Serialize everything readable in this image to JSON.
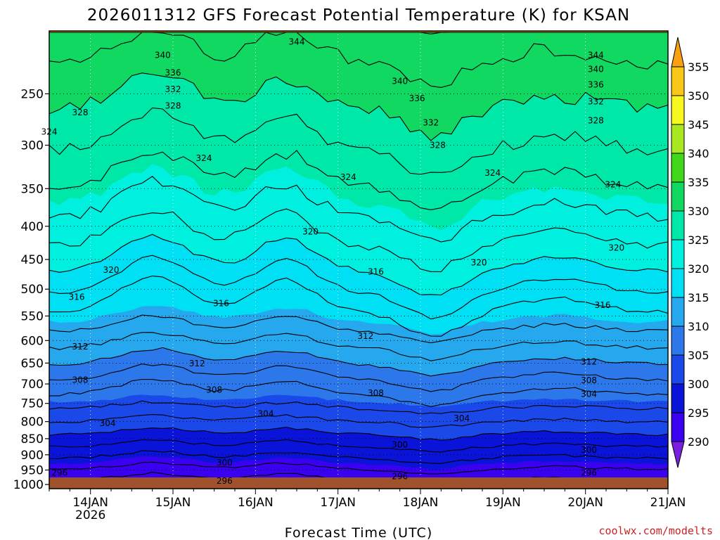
{
  "chart_data": {
    "type": "contour",
    "title": "2026011312 GFS Forecast Potential Temperature (K) for KSAN",
    "xlabel": "Forecast Time (UTC)",
    "ylabel": "",
    "credit": "coolwx.com/modelts",
    "x_ticks": [
      "14JAN",
      "15JAN",
      "16JAN",
      "17JAN",
      "18JAN",
      "19JAN",
      "20JAN",
      "21JAN"
    ],
    "x_subtick": "2026",
    "x_range_hours": [
      -12,
      168
    ],
    "y_ticks": [
      250,
      300,
      350,
      400,
      450,
      500,
      550,
      600,
      650,
      700,
      750,
      800,
      850,
      900,
      950,
      1000
    ],
    "y_range_hpa": [
      200,
      1015
    ],
    "colorbar": {
      "levels": [
        285,
        290,
        295,
        300,
        305,
        310,
        315,
        320,
        325,
        330,
        335,
        340,
        345,
        350,
        355,
        360
      ],
      "labels": [
        290,
        295,
        300,
        305,
        310,
        315,
        320,
        325,
        330,
        335,
        340,
        345,
        350,
        355
      ],
      "colors": [
        "#7a1fe0",
        "#3a00f0",
        "#0a14d8",
        "#1b48e8",
        "#2c78ea",
        "#25a8ee",
        "#00e0f4",
        "#00f0e0",
        "#00e8a8",
        "#10d860",
        "#40d818",
        "#a8e820",
        "#f8f820",
        "#f8c818",
        "#f8a010"
      ]
    },
    "ground_color": "#a0522d",
    "contour_labels": [
      {
        "value": "344",
        "hour": 60,
        "hpa": 208
      },
      {
        "value": "340",
        "hour": 21,
        "hpa": 218
      },
      {
        "value": "336",
        "hour": 24,
        "hpa": 232
      },
      {
        "value": "332",
        "hour": 24,
        "hpa": 246
      },
      {
        "value": "328",
        "hour": 24,
        "hpa": 261
      },
      {
        "value": "328",
        "hour": -3,
        "hpa": 267
      },
      {
        "value": "324",
        "hour": -12,
        "hpa": 286
      },
      {
        "value": "340",
        "hour": 90,
        "hpa": 239
      },
      {
        "value": "336",
        "hour": 95,
        "hpa": 254
      },
      {
        "value": "332",
        "hour": 99,
        "hpa": 277
      },
      {
        "value": "328",
        "hour": 101,
        "hpa": 300
      },
      {
        "value": "344",
        "hour": 147,
        "hpa": 218
      },
      {
        "value": "340",
        "hour": 147,
        "hpa": 229
      },
      {
        "value": "336",
        "hour": 147,
        "hpa": 242
      },
      {
        "value": "332",
        "hour": 147,
        "hpa": 257
      },
      {
        "value": "328",
        "hour": 147,
        "hpa": 275
      },
      {
        "value": "324",
        "hour": 33,
        "hpa": 314
      },
      {
        "value": "324",
        "hour": 75,
        "hpa": 336
      },
      {
        "value": "324",
        "hour": 117,
        "hpa": 331
      },
      {
        "value": "324",
        "hour": 152,
        "hpa": 345
      },
      {
        "value": "320",
        "hour": 64,
        "hpa": 408
      },
      {
        "value": "320",
        "hour": 6,
        "hpa": 467
      },
      {
        "value": "320",
        "hour": 113,
        "hpa": 455
      },
      {
        "value": "320",
        "hour": 153,
        "hpa": 432
      },
      {
        "value": "316",
        "hour": -4,
        "hpa": 514
      },
      {
        "value": "316",
        "hour": 38,
        "hpa": 526
      },
      {
        "value": "316",
        "hour": 83,
        "hpa": 470
      },
      {
        "value": "316",
        "hour": 149,
        "hpa": 529
      },
      {
        "value": "312",
        "hour": -3,
        "hpa": 613
      },
      {
        "value": "312",
        "hour": 31,
        "hpa": 651
      },
      {
        "value": "312",
        "hour": 80,
        "hpa": 591
      },
      {
        "value": "312",
        "hour": 145,
        "hpa": 647
      },
      {
        "value": "308",
        "hour": -3,
        "hpa": 690
      },
      {
        "value": "308",
        "hour": 36,
        "hpa": 715
      },
      {
        "value": "308",
        "hour": 83,
        "hpa": 723
      },
      {
        "value": "308",
        "hour": 145,
        "hpa": 691
      },
      {
        "value": "304",
        "hour": 5,
        "hpa": 805
      },
      {
        "value": "304",
        "hour": 51,
        "hpa": 778
      },
      {
        "value": "304",
        "hour": 108,
        "hpa": 791
      },
      {
        "value": "304",
        "hour": 145,
        "hpa": 726
      },
      {
        "value": "300",
        "hour": 39,
        "hpa": 926
      },
      {
        "value": "300",
        "hour": 90,
        "hpa": 868
      },
      {
        "value": "300",
        "hour": 145,
        "hpa": 885
      },
      {
        "value": "296",
        "hour": -9,
        "hpa": 960
      },
      {
        "value": "296",
        "hour": 39,
        "hpa": 987
      },
      {
        "value": "296",
        "hour": 90,
        "hpa": 972
      },
      {
        "value": "296",
        "hour": 145,
        "hpa": 960
      }
    ]
  }
}
